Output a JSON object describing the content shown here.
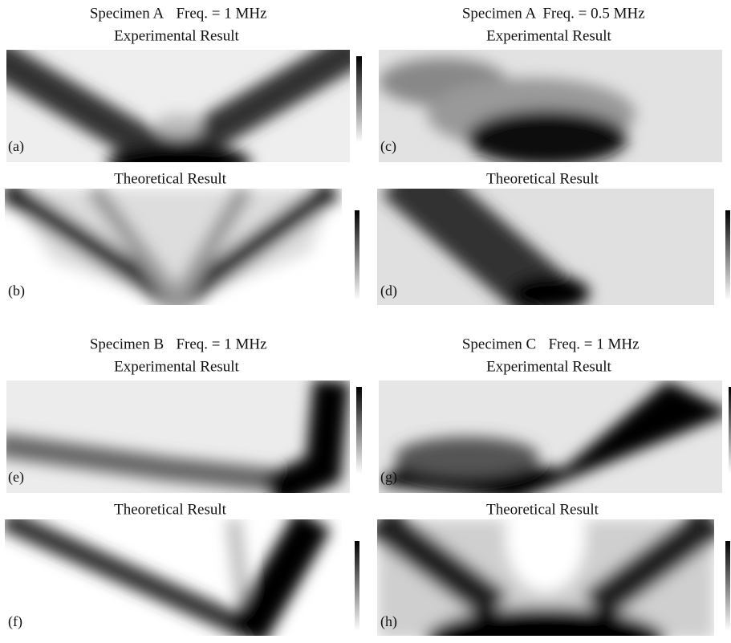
{
  "panels": [
    {
      "specimen": "Specimen A",
      "frequency": "Freq. = 1 MHz",
      "experimental": {
        "title": "Experimental Result",
        "label": "(a)"
      },
      "theoretical": {
        "title": "Theoretical Result",
        "label": "(b)"
      }
    },
    {
      "specimen": "Specimen A",
      "frequency": "Freq. = 0.5 MHz",
      "experimental": {
        "title": "Experimental Result",
        "label": "(c)"
      },
      "theoretical": {
        "title": "Theoretical Result",
        "label": "(d)"
      }
    },
    {
      "specimen": "Specimen B",
      "frequency": "Freq. = 1 MHz",
      "experimental": {
        "title": "Experimental Result",
        "label": "(e)"
      },
      "theoretical": {
        "title": "Theoretical Result",
        "label": "(f)"
      }
    },
    {
      "specimen": "Specimen C",
      "frequency": "Freq. = 1 MHz",
      "experimental": {
        "title": "Experimental Result",
        "label": "(g)"
      },
      "theoretical": {
        "title": "Theoretical Result",
        "label": "(h)"
      }
    }
  ]
}
